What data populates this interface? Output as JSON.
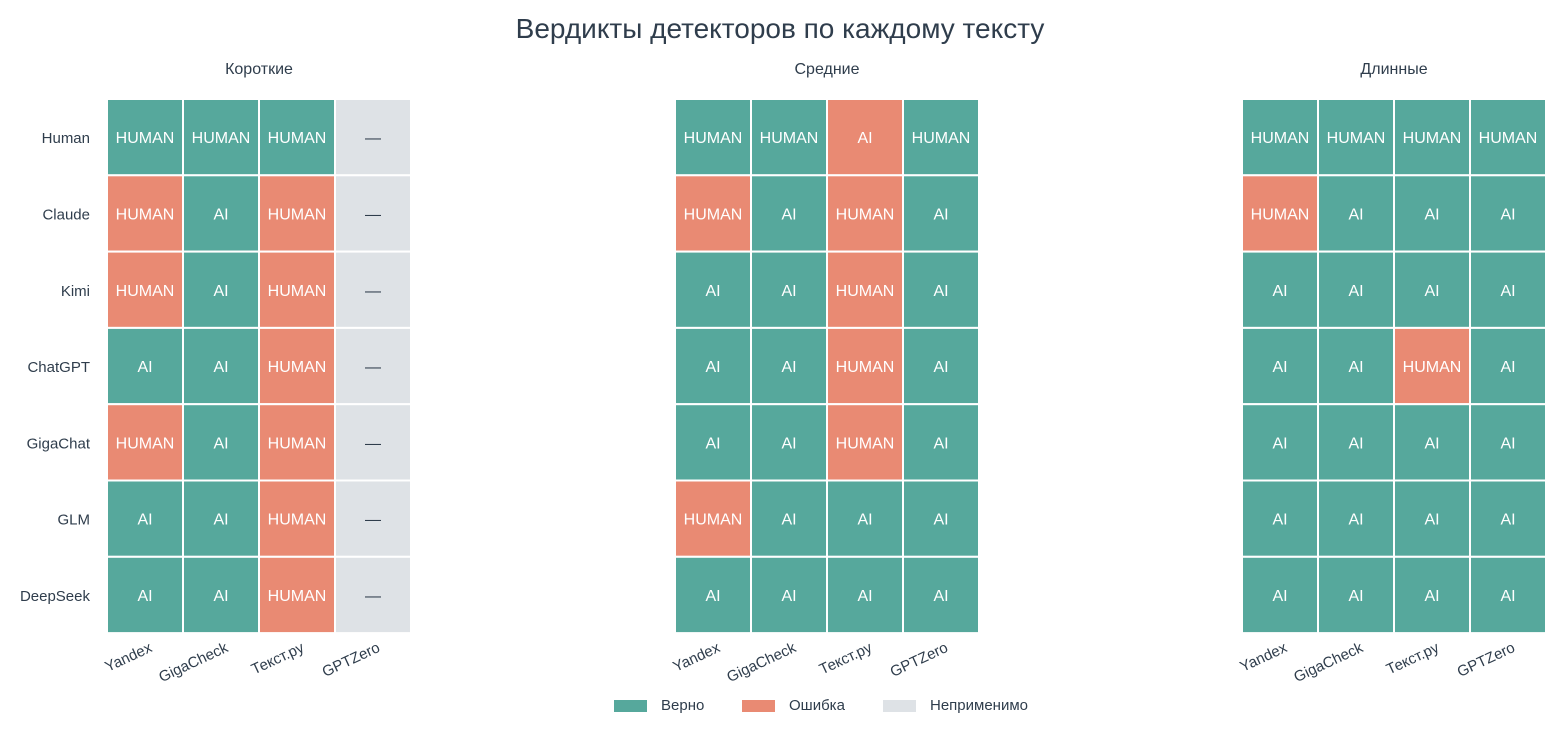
{
  "title": "Вердикты детекторов по каждому тексту",
  "colors": {
    "correct": "#56a89c",
    "error": "#e98a73",
    "na": "#dee2e6",
    "label_light": "#ffffff",
    "label_dark": "#2f3d4c"
  },
  "legend": [
    {
      "key": "correct",
      "label": "Верно"
    },
    {
      "key": "error",
      "label": "Ошибка"
    },
    {
      "key": "na",
      "label": "Неприменимо"
    }
  ],
  "chart_data": [
    {
      "type": "heatmap",
      "title": "Короткие",
      "rows": [
        "Human",
        "Claude",
        "Kimi",
        "ChatGPT",
        "GigaChat",
        "GLM",
        "DeepSeek"
      ],
      "columns": [
        "Yandex",
        "GigaCheck",
        "Текст.ру",
        "GPTZero"
      ],
      "cells": [
        [
          [
            "HUMAN",
            "correct"
          ],
          [
            "HUMAN",
            "correct"
          ],
          [
            "HUMAN",
            "correct"
          ],
          [
            "—",
            "na"
          ]
        ],
        [
          [
            "HUMAN",
            "error"
          ],
          [
            "AI",
            "correct"
          ],
          [
            "HUMAN",
            "error"
          ],
          [
            "—",
            "na"
          ]
        ],
        [
          [
            "HUMAN",
            "error"
          ],
          [
            "AI",
            "correct"
          ],
          [
            "HUMAN",
            "error"
          ],
          [
            "—",
            "na"
          ]
        ],
        [
          [
            "AI",
            "correct"
          ],
          [
            "AI",
            "correct"
          ],
          [
            "HUMAN",
            "error"
          ],
          [
            "—",
            "na"
          ]
        ],
        [
          [
            "HUMAN",
            "error"
          ],
          [
            "AI",
            "correct"
          ],
          [
            "HUMAN",
            "error"
          ],
          [
            "—",
            "na"
          ]
        ],
        [
          [
            "AI",
            "correct"
          ],
          [
            "AI",
            "correct"
          ],
          [
            "HUMAN",
            "error"
          ],
          [
            "—",
            "na"
          ]
        ],
        [
          [
            "AI",
            "correct"
          ],
          [
            "AI",
            "correct"
          ],
          [
            "HUMAN",
            "error"
          ],
          [
            "—",
            "na"
          ]
        ]
      ]
    },
    {
      "type": "heatmap",
      "title": "Средние",
      "rows": [
        "Human",
        "Claude",
        "Kimi",
        "ChatGPT",
        "GigaChat",
        "GLM",
        "DeepSeek"
      ],
      "columns": [
        "Yandex",
        "GigaCheck",
        "Текст.ру",
        "GPTZero"
      ],
      "cells": [
        [
          [
            "HUMAN",
            "correct"
          ],
          [
            "HUMAN",
            "correct"
          ],
          [
            "AI",
            "error"
          ],
          [
            "HUMAN",
            "correct"
          ]
        ],
        [
          [
            "HUMAN",
            "error"
          ],
          [
            "AI",
            "correct"
          ],
          [
            "HUMAN",
            "error"
          ],
          [
            "AI",
            "correct"
          ]
        ],
        [
          [
            "AI",
            "correct"
          ],
          [
            "AI",
            "correct"
          ],
          [
            "HUMAN",
            "error"
          ],
          [
            "AI",
            "correct"
          ]
        ],
        [
          [
            "AI",
            "correct"
          ],
          [
            "AI",
            "correct"
          ],
          [
            "HUMAN",
            "error"
          ],
          [
            "AI",
            "correct"
          ]
        ],
        [
          [
            "AI",
            "correct"
          ],
          [
            "AI",
            "correct"
          ],
          [
            "HUMAN",
            "error"
          ],
          [
            "AI",
            "correct"
          ]
        ],
        [
          [
            "HUMAN",
            "error"
          ],
          [
            "AI",
            "correct"
          ],
          [
            "AI",
            "correct"
          ],
          [
            "AI",
            "correct"
          ]
        ],
        [
          [
            "AI",
            "correct"
          ],
          [
            "AI",
            "correct"
          ],
          [
            "AI",
            "correct"
          ],
          [
            "AI",
            "correct"
          ]
        ]
      ]
    },
    {
      "type": "heatmap",
      "title": "Длинные",
      "rows": [
        "Human",
        "Claude",
        "Kimi",
        "ChatGPT",
        "GigaChat",
        "GLM",
        "DeepSeek"
      ],
      "columns": [
        "Yandex",
        "GigaCheck",
        "Текст.ру",
        "GPTZero"
      ],
      "cells": [
        [
          [
            "HUMAN",
            "correct"
          ],
          [
            "HUMAN",
            "correct"
          ],
          [
            "HUMAN",
            "correct"
          ],
          [
            "HUMAN",
            "correct"
          ]
        ],
        [
          [
            "HUMAN",
            "error"
          ],
          [
            "AI",
            "correct"
          ],
          [
            "AI",
            "correct"
          ],
          [
            "AI",
            "correct"
          ]
        ],
        [
          [
            "AI",
            "correct"
          ],
          [
            "AI",
            "correct"
          ],
          [
            "AI",
            "correct"
          ],
          [
            "AI",
            "correct"
          ]
        ],
        [
          [
            "AI",
            "correct"
          ],
          [
            "AI",
            "correct"
          ],
          [
            "HUMAN",
            "error"
          ],
          [
            "AI",
            "correct"
          ]
        ],
        [
          [
            "AI",
            "correct"
          ],
          [
            "AI",
            "correct"
          ],
          [
            "AI",
            "correct"
          ],
          [
            "AI",
            "correct"
          ]
        ],
        [
          [
            "AI",
            "correct"
          ],
          [
            "AI",
            "correct"
          ],
          [
            "AI",
            "correct"
          ],
          [
            "AI",
            "correct"
          ]
        ],
        [
          [
            "AI",
            "correct"
          ],
          [
            "AI",
            "correct"
          ],
          [
            "AI",
            "correct"
          ],
          [
            "AI",
            "correct"
          ]
        ]
      ]
    }
  ]
}
